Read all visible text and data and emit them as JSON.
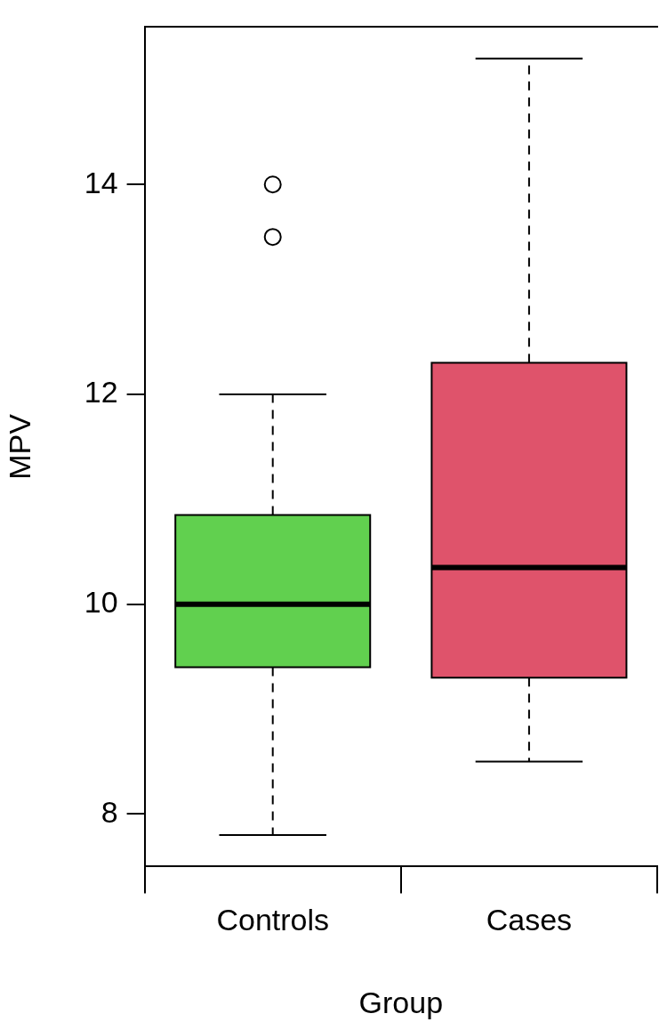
{
  "chart_data": {
    "type": "box",
    "xlabel": "Group",
    "ylabel": "MPV",
    "categories": [
      "Controls",
      "Cases"
    ],
    "colors": [
      "#61d04f",
      "#df536b"
    ],
    "boxes": [
      {
        "low": 7.8,
        "q1": 9.4,
        "median": 10.0,
        "q3": 10.85,
        "high": 12.0,
        "outliers": [
          13.5,
          14.0
        ]
      },
      {
        "low": 8.5,
        "q1": 9.3,
        "median": 10.35,
        "q3": 12.3,
        "high": 15.2
      }
    ],
    "ylim": [
      7.5,
      15.5
    ],
    "yticks": [
      8,
      10,
      12,
      14
    ],
    "grid": false
  }
}
